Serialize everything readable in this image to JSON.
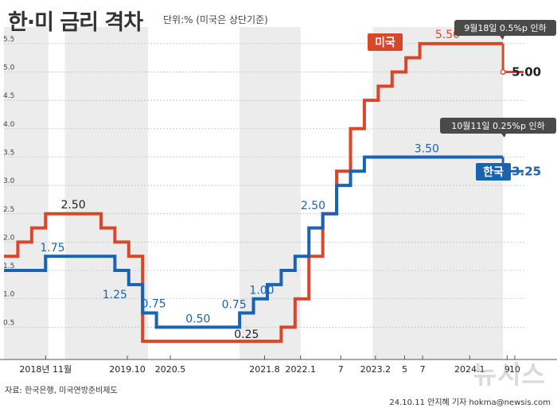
{
  "header": {
    "title": "한·미 금리 격차",
    "unit": "단위:% (미국은 상단기준)"
  },
  "footer": {
    "source": "자료: 한국은행, 미국연방준비제도",
    "credit": "24.10.11 안지혜 기자 hokma@newsis.com",
    "watermark": "뉴시스"
  },
  "colors": {
    "us": "#d9472b",
    "korea": "#1a63b0",
    "band": "#ececec",
    "annotation_bg": "#4a4a4a"
  },
  "chart_data": {
    "type": "line",
    "step": true,
    "ylim": [
      0,
      5.5
    ],
    "yticks": [
      "0.5",
      "1.0",
      "1.5",
      "2.0",
      "2.5",
      "3.0",
      "3.5",
      "4.0",
      "4.5",
      "5.0",
      "5.5"
    ],
    "x_labels": [
      "2018년 11월",
      "2019.10",
      "2020.5",
      "2021.8",
      "2022.1",
      "7",
      "2023.2",
      "5",
      "7",
      "2024.1",
      "9",
      "10"
    ],
    "series": [
      {
        "name": "미국",
        "values": [
          {
            "x": 0,
            "y": 1.75
          },
          {
            "x": 1,
            "y": 2.0
          },
          {
            "x": 2,
            "y": 2.25
          },
          {
            "x": 3,
            "y": 2.5
          },
          {
            "x": 7,
            "y": 2.25
          },
          {
            "x": 8,
            "y": 2.0
          },
          {
            "x": 9,
            "y": 1.75
          },
          {
            "x": 10,
            "y": 0.25
          },
          {
            "x": 20,
            "y": 0.5
          },
          {
            "x": 21,
            "y": 1.0
          },
          {
            "x": 22,
            "y": 1.75
          },
          {
            "x": 23,
            "y": 2.5
          },
          {
            "x": 24,
            "y": 3.25
          },
          {
            "x": 25,
            "y": 4.0
          },
          {
            "x": 26,
            "y": 4.5
          },
          {
            "x": 27,
            "y": 4.75
          },
          {
            "x": 28,
            "y": 5.0
          },
          {
            "x": 29,
            "y": 5.25
          },
          {
            "x": 30,
            "y": 5.5
          },
          {
            "x": 36,
            "y": 5.0
          }
        ]
      },
      {
        "name": "한국",
        "values": [
          {
            "x": 0,
            "y": 1.5
          },
          {
            "x": 3,
            "y": 1.75
          },
          {
            "x": 8,
            "y": 1.5
          },
          {
            "x": 9,
            "y": 1.25
          },
          {
            "x": 10,
            "y": 0.75
          },
          {
            "x": 11,
            "y": 0.5
          },
          {
            "x": 17,
            "y": 0.75
          },
          {
            "x": 18,
            "y": 1.0
          },
          {
            "x": 19,
            "y": 1.25
          },
          {
            "x": 20,
            "y": 1.5
          },
          {
            "x": 21,
            "y": 1.75
          },
          {
            "x": 22,
            "y": 2.25
          },
          {
            "x": 23,
            "y": 2.5
          },
          {
            "x": 24,
            "y": 3.0
          },
          {
            "x": 25,
            "y": 3.25
          },
          {
            "x": 26,
            "y": 3.5
          },
          {
            "x": 36,
            "y": 3.25
          }
        ]
      }
    ],
    "legend": [
      {
        "name": "미국",
        "color": "#d9472b"
      },
      {
        "name": "한국",
        "color": "#1a63b0"
      }
    ],
    "value_labels": [
      {
        "series": "미국",
        "text": "2.50",
        "x": 5,
        "y": 2.5
      },
      {
        "series": "미국",
        "text": "0.25",
        "x": 17.5,
        "y": 0.25
      },
      {
        "series": "미국",
        "text": "5.50",
        "x": 32,
        "y": 5.5
      },
      {
        "series": "미국",
        "text": "5.00",
        "x": 36.4,
        "y": 5.0
      },
      {
        "series": "한국",
        "text": "1.75",
        "x": 3.5,
        "y": 1.75
      },
      {
        "series": "한국",
        "text": "1.25",
        "x": 8,
        "y": 1.25
      },
      {
        "series": "한국",
        "text": "0.75",
        "x": 10.8,
        "y": 0.75
      },
      {
        "series": "한국",
        "text": "0.50",
        "x": 14,
        "y": 0.5
      },
      {
        "series": "한국",
        "text": "0.75",
        "x": 16.6,
        "y": 0.75
      },
      {
        "series": "한국",
        "text": "1.00",
        "x": 18.6,
        "y": 1.0
      },
      {
        "series": "한국",
        "text": "2.50",
        "x": 22.3,
        "y": 2.5
      },
      {
        "series": "한국",
        "text": "3.50",
        "x": 30.5,
        "y": 3.5
      },
      {
        "series": "한국",
        "text": "3.25",
        "x": 36.4,
        "y": 3.25
      }
    ],
    "annotations": [
      {
        "text": "9월18일 0.5%p 인하",
        "series": "미국"
      },
      {
        "text": "10월11일 0.25%p 인하",
        "series": "한국"
      }
    ]
  }
}
